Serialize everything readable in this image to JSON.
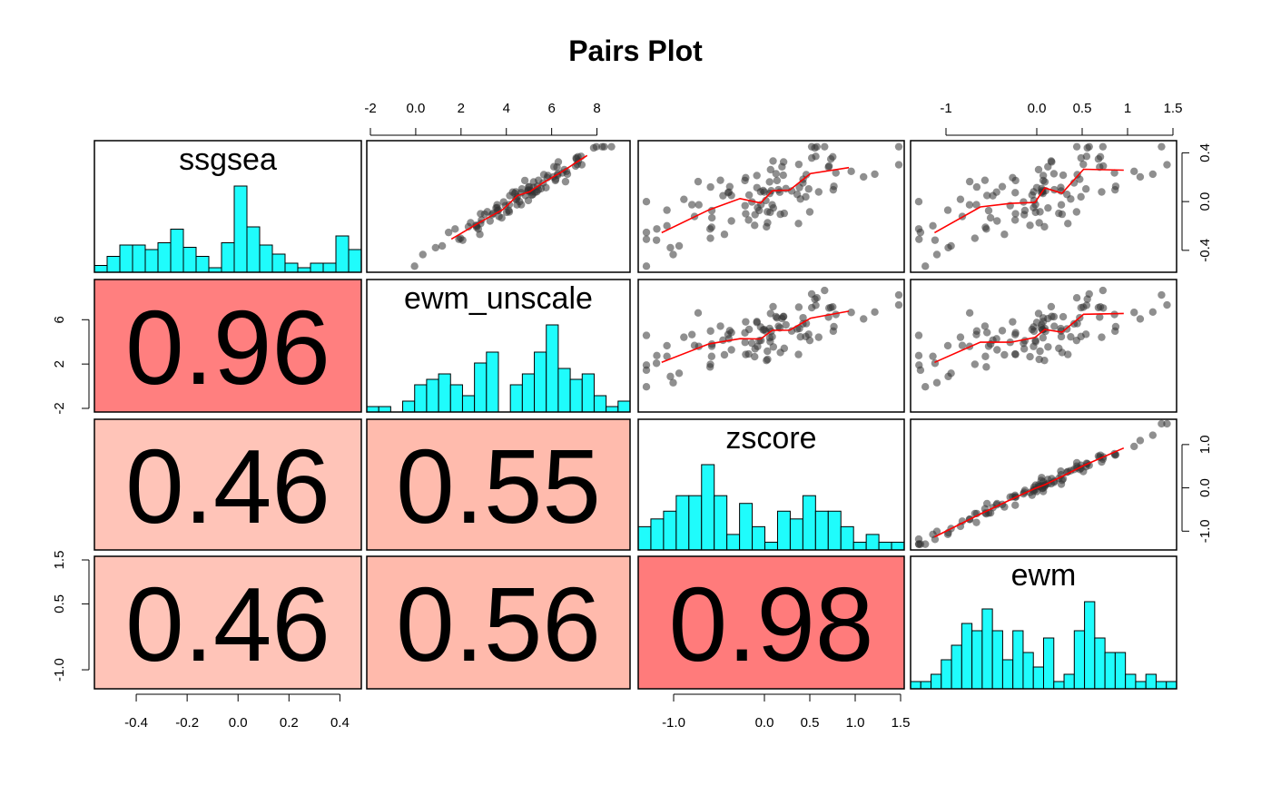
{
  "chart_data": {
    "type": "scatter",
    "title": "Pairs Plot",
    "variables": [
      "ssgsea",
      "ewm_unscale",
      "zscore",
      "ewm"
    ],
    "ranges": {
      "ssgsea": [
        -0.55,
        0.47
      ],
      "ewm_unscale": [
        -2.0,
        9.3
      ],
      "zscore": [
        -1.35,
        1.5
      ],
      "ewm": [
        -1.35,
        1.5
      ]
    },
    "axis_ticks": {
      "ssgsea_bottom": [
        -0.4,
        -0.2,
        0.0,
        0.2,
        0.4
      ],
      "ssgsea_right": [
        -0.4,
        0.0,
        0.4
      ],
      "ewm_unscale_top": [
        -2,
        0,
        2,
        4,
        6,
        8
      ],
      "ewm_unscale_left": [
        -2,
        2,
        6
      ],
      "zscore_bottom": [
        -1.0,
        0.0,
        0.5,
        1.0,
        1.5
      ],
      "zscore_right": [
        -1.0,
        0.0,
        1.0
      ],
      "ewm_top": [
        -1.0,
        0.0,
        0.5,
        1.0,
        1.5
      ],
      "ewm_left": [
        -1.0,
        0.5,
        1.5
      ]
    },
    "correlations": [
      {
        "row": "ewm_unscale",
        "col": "ssgsea",
        "value": "0.96",
        "color": "#ff7f7f"
      },
      {
        "row": "zscore",
        "col": "ssgsea",
        "value": "0.46",
        "color": "#ffc4b8"
      },
      {
        "row": "zscore",
        "col": "ewm_unscale",
        "value": "0.55",
        "color": "#ffbbad"
      },
      {
        "row": "ewm",
        "col": "ssgsea",
        "value": "0.46",
        "color": "#ffc4b8"
      },
      {
        "row": "ewm",
        "col": "ewm_unscale",
        "value": "0.56",
        "color": "#ffbaac"
      },
      {
        "row": "ewm",
        "col": "zscore",
        "value": "0.98",
        "color": "#ff7b7b"
      }
    ],
    "histograms": {
      "ssgsea": [
        3,
        7,
        12,
        12,
        10,
        13,
        19,
        11,
        7,
        2,
        13,
        38,
        20,
        12,
        8,
        4,
        2,
        4,
        4,
        16,
        10
      ],
      "ewm_unscale": [
        1,
        1,
        0,
        2,
        5,
        6,
        7,
        5,
        3,
        9,
        11,
        0,
        5,
        7,
        11,
        16,
        8,
        6,
        7,
        3,
        1,
        2
      ],
      "zscore": [
        3,
        4,
        5,
        7,
        7,
        11,
        7,
        2,
        6,
        3,
        1,
        5,
        4,
        7,
        5,
        5,
        3,
        1,
        2,
        1,
        1
      ],
      "ewm": [
        1,
        1,
        2,
        4,
        6,
        9,
        8,
        11,
        8,
        4,
        8,
        5,
        3,
        7,
        1,
        2,
        8,
        12,
        7,
        5,
        5,
        2,
        1,
        2,
        1,
        1
      ]
    },
    "colors": {
      "histogram_fill": "#1ffcfc",
      "point": "#333333",
      "smooth_line": "#ff0000"
    }
  }
}
